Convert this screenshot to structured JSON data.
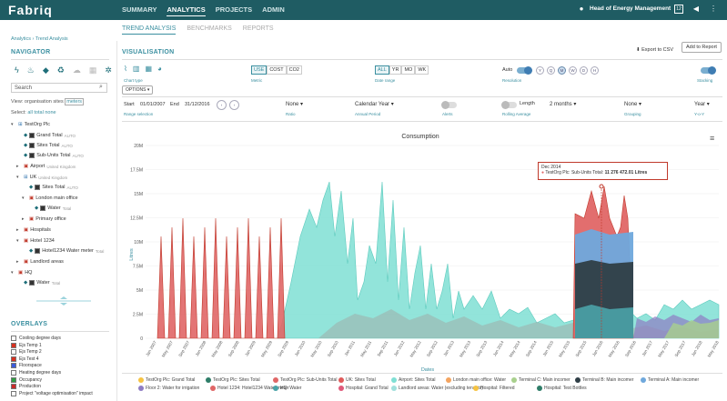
{
  "topbar": {
    "logo": "Fabriq",
    "nav": [
      "SUMMARY",
      "ANALYTICS",
      "PROJECTS",
      "ADMIN"
    ],
    "active_nav": "ANALYTICS",
    "user": "Head of Energy Management",
    "badge": "12"
  },
  "subnav": {
    "tabs": [
      "TREND ANALYSIS",
      "BENCHMARKS",
      "REPORTS"
    ],
    "active": "TREND ANALYSIS"
  },
  "breadcrumb": "Analytics › Trend Analysis",
  "navigator": {
    "title": "NAVIGATOR",
    "search_placeholder": "Search",
    "view_label": "View:",
    "view_options": [
      "organisation",
      "sites",
      "meters"
    ],
    "select_label": "Select:",
    "select_options": [
      "all",
      "total",
      "none"
    ],
    "tree": [
      {
        "label": "TestOrg Plc",
        "sub": ""
      },
      {
        "label": "Grand Total",
        "sub": "AUTO"
      },
      {
        "label": "Sites Total",
        "sub": "AUTO"
      },
      {
        "label": "Sub-Units Total",
        "sub": "AUTO"
      },
      {
        "label": "Airport",
        "sub": "United Kingdom"
      },
      {
        "label": "UK",
        "sub": "United Kingdom"
      },
      {
        "label": "Sites Total",
        "sub": "AUTO"
      },
      {
        "label": "London main office",
        "sub": ""
      },
      {
        "label": "Water",
        "sub": "Total"
      },
      {
        "label": "Primary office",
        "sub": ""
      },
      {
        "label": "Hospitals",
        "sub": ""
      },
      {
        "label": "Hotel 1234",
        "sub": ""
      },
      {
        "label": "Hotel1234 Water meter",
        "sub": "Total"
      },
      {
        "label": "Landlord areas",
        "sub": ""
      },
      {
        "label": "HQ",
        "sub": ""
      },
      {
        "label": "Water",
        "sub": "Total"
      }
    ]
  },
  "overlays": {
    "title": "OVERLAYS",
    "items": [
      {
        "label": "Cooling degree days",
        "color": "#ffffff"
      },
      {
        "label": "Ejs Temp 1",
        "color": "#d7301f"
      },
      {
        "label": "Ejs Temp 2",
        "color": "#ffffff"
      },
      {
        "label": "Ejs Test 4",
        "color": "#d7301f"
      },
      {
        "label": "Floorspace",
        "color": "#3b5bdb"
      },
      {
        "label": "Heating degree days",
        "color": "#ffffff"
      },
      {
        "label": "Occupancy",
        "color": "#2f9e44"
      },
      {
        "label": "Production",
        "color": "#c92a2a"
      },
      {
        "label": "Project \"voltage optimisation\" impact",
        "color": "#ffffff"
      }
    ]
  },
  "visualisation": {
    "title": "VISUALISATION",
    "export": "Export to CSV",
    "add_report": "Add to Report",
    "chart_type_label": "Chart type",
    "options_btn": "OPTIONS",
    "metric": {
      "options": [
        "USE",
        "COST",
        "CO2"
      ],
      "active": "USE",
      "label": "Metric"
    },
    "date_range": {
      "options": [
        "ALL",
        "YR",
        "MO",
        "WK"
      ],
      "active": "ALL",
      "label": "Date range"
    },
    "resolution": {
      "label": "Resolution",
      "auto": "Auto",
      "options": [
        "Y",
        "Q",
        "M",
        "W",
        "D",
        "H"
      ],
      "active": "M"
    },
    "stacking": "Stacking",
    "start_label": "Start",
    "start": "01/01/2007",
    "end_label": "End",
    "end": "31/12/2016",
    "range_selection": "Range selection",
    "ratio": {
      "value": "None",
      "label": "Ratio"
    },
    "annual": {
      "value": "Calendar Year",
      "label": "Annual Period"
    },
    "alerts": "Alerts",
    "rolling": {
      "toggle": "Length",
      "value": "2 months",
      "label": "Rolling Average"
    },
    "grouping": {
      "value": "None",
      "label": "Grouping"
    },
    "yoy": {
      "value": "Year",
      "label": "Y-o-Y"
    }
  },
  "chart_data": {
    "type": "area",
    "title": "Consumption",
    "ylabel": "Litres",
    "xlabel": "Dates",
    "yticks": [
      "0",
      "2.5M",
      "5M",
      "7.5M",
      "10M",
      "12.5M",
      "15M",
      "17.5M",
      "20M"
    ],
    "ylim": [
      0,
      20000000
    ],
    "xticks": [
      "Jan 2007",
      "May 2007",
      "Sep 2007",
      "Jan 2008",
      "May 2008",
      "Sep 2008",
      "Jan 2009",
      "May 2009",
      "Sep 2009",
      "Jan 2010",
      "May 2010",
      "Sep 2010",
      "Jan 2011",
      "May 2011",
      "Sep 2011",
      "Jan 2012",
      "May 2012",
      "Sep 2012",
      "Jan 2013",
      "May 2013",
      "Sep 2013",
      "Jan 2014",
      "May 2014",
      "Sep 2014",
      "Jan 2015",
      "May 2015",
      "Sep 2015",
      "Jan 2016",
      "May 2016",
      "Sep 2016",
      "Jan 2017",
      "May 2017",
      "Sep 2017",
      "Jan 2018",
      "May 2018"
    ],
    "tooltip": {
      "date": "Dec 2014",
      "series": "TestOrg Plc: Sub-Units Total:",
      "value": "11 276 472.01 Litres"
    },
    "series": [
      {
        "name": "TestOrg Plc: Sub-Units Total",
        "color": "#e06666"
      },
      {
        "name": "Airport: Sites Total",
        "color": "#7fdfd4"
      },
      {
        "name": "London main office: Water",
        "color": "#f4a460"
      }
    ]
  },
  "legend": [
    {
      "label": "TestOrg Plc: Grand Total",
      "color": "#f6c342"
    },
    {
      "label": "TestOrg Plc: Sites Total",
      "color": "#2e7d68"
    },
    {
      "label": "TestOrg Plc: Sub-Units Total",
      "color": "#e06666"
    },
    {
      "label": "UK: Sites Total",
      "color": "#e05a5a"
    },
    {
      "label": "Airport: Sites Total",
      "color": "#7fdfd4"
    },
    {
      "label": "London main office: Water",
      "color": "#f4a460"
    },
    {
      "label": "Terminal C: Main incomer",
      "color": "#a8d08d"
    },
    {
      "label": "Terminal B: Main incomer",
      "color": "#2f3e46"
    },
    {
      "label": "Terminal A: Main incomer",
      "color": "#6fa8dc"
    },
    {
      "label": "Floor 2: Water for irrigation",
      "color": "#8e7cc3"
    },
    {
      "label": "Hotel 1234: Hotel1234 Water meter",
      "color": "#e06666"
    },
    {
      "label": "HQ: Water",
      "color": "#4aa3a8"
    },
    {
      "label": "Hospital: Grand Total",
      "color": "#e05a7a"
    },
    {
      "label": "Landlord areas: Water (excluding tenants)",
      "color": "#a0e0dc"
    },
    {
      "label": "Hospital: Filtered",
      "color": "#f6c342"
    },
    {
      "label": "Hospital: Test Bottles",
      "color": "#2e7d68"
    }
  ]
}
